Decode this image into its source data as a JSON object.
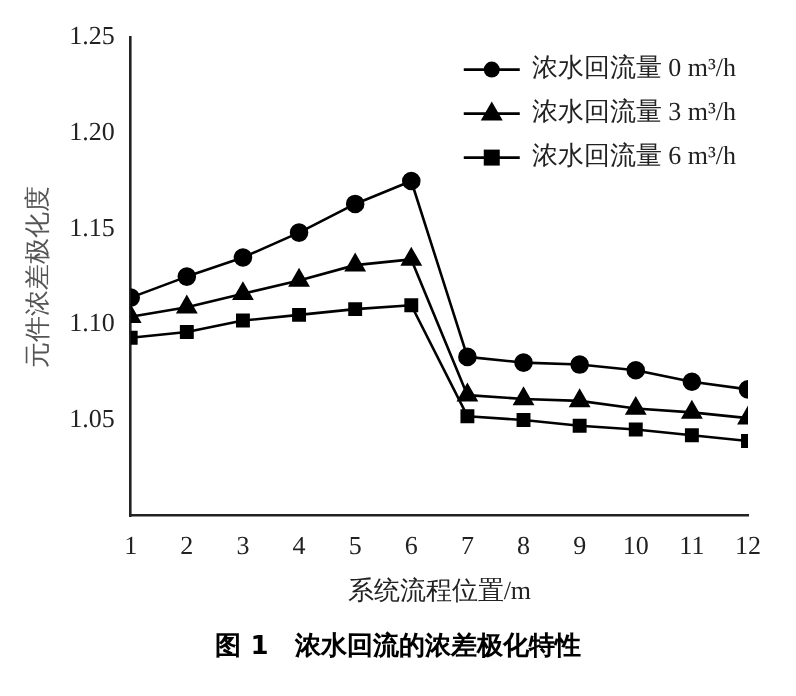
{
  "chart_data": {
    "type": "line",
    "xlabel": "系统流程位置/m",
    "ylabel": "元件浓差极化度",
    "annotations": [
      "图 1　浓水回流的浓差极化特性"
    ],
    "x": [
      1,
      2,
      3,
      4,
      5,
      6,
      7,
      8,
      9,
      10,
      11,
      12
    ],
    "xlim": [
      1,
      12
    ],
    "xticks": [
      1,
      2,
      3,
      4,
      5,
      6,
      7,
      8,
      9,
      10,
      11,
      12
    ],
    "ylim": [
      1.0,
      1.25
    ],
    "yticks": [
      1.05,
      {
        "value": 1.1,
        "label": "1.10"
      },
      1.15,
      {
        "value": 1.2,
        "label": "1.20"
      },
      1.25
    ],
    "grid": false,
    "legend": "top right",
    "line_style": "solid",
    "series": [
      {
        "name": "浓水回流量 0 m³/h",
        "color": "#000000",
        "marker": "circle",
        "values": [
          1.114,
          1.125,
          1.135,
          1.148,
          1.163,
          1.175,
          1.083,
          1.08,
          1.079,
          1.076,
          1.07,
          1.066
        ]
      },
      {
        "name": "浓水回流量 3 m³/h",
        "color": "#000000",
        "marker": "triangle",
        "values": [
          1.104,
          1.109,
          1.116,
          1.123,
          1.131,
          1.134,
          1.063,
          1.061,
          1.06,
          1.056,
          1.054,
          1.051
        ]
      },
      {
        "name": "浓水回流量 6 m³/h",
        "color": "#000000",
        "marker": "square",
        "values": [
          1.093,
          1.096,
          1.102,
          1.105,
          1.108,
          1.11,
          1.052,
          1.05,
          1.047,
          1.045,
          1.042,
          1.039
        ]
      }
    ]
  }
}
